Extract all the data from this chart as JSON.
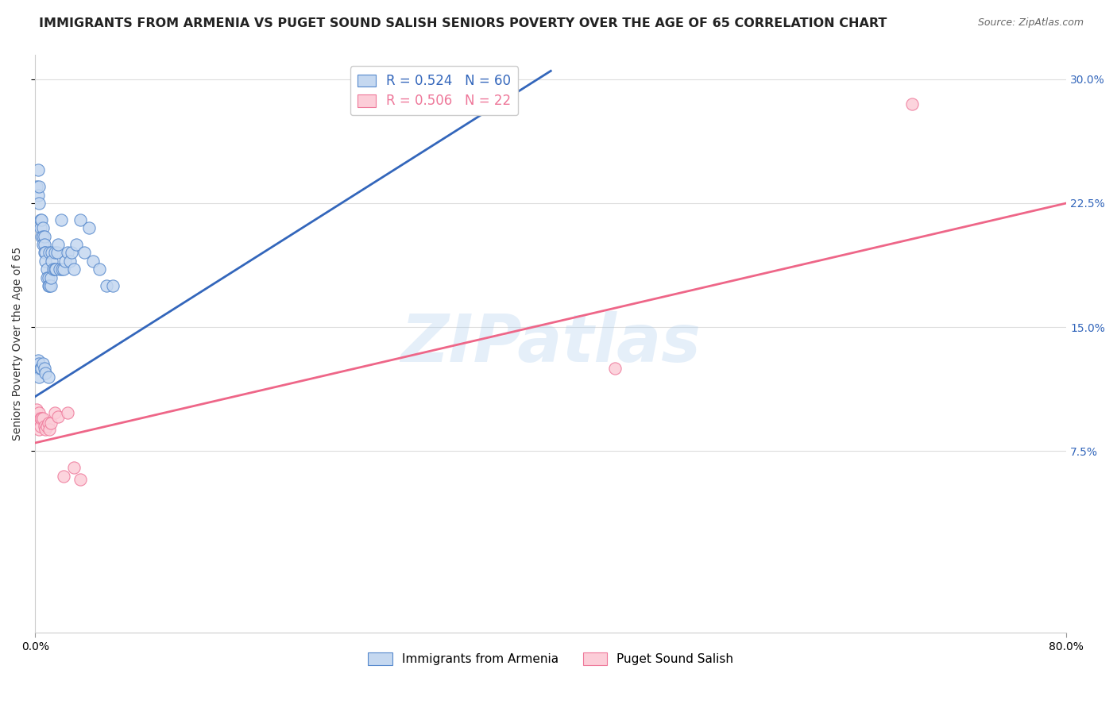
{
  "title": "IMMIGRANTS FROM ARMENIA VS PUGET SOUND SALISH SENIORS POVERTY OVER THE AGE OF 65 CORRELATION CHART",
  "source": "Source: ZipAtlas.com",
  "ylabel_label": "Seniors Poverty Over the Age of 65",
  "xmax": 0.8,
  "ymin": -0.035,
  "ymax": 0.315,
  "blue_R": 0.524,
  "blue_N": 60,
  "pink_R": 0.506,
  "pink_N": 22,
  "blue_fill_color": "#C5D8F0",
  "pink_fill_color": "#FCCDD8",
  "blue_edge_color": "#5588CC",
  "pink_edge_color": "#EE7799",
  "blue_line_color": "#3366BB",
  "pink_line_color": "#EE6688",
  "legend_label_blue": "Immigrants from Armenia",
  "legend_label_pink": "Puget Sound Salish",
  "watermark": "ZIPatlas",
  "blue_scatter_x": [
    0.001,
    0.002,
    0.002,
    0.003,
    0.003,
    0.004,
    0.004,
    0.005,
    0.005,
    0.006,
    0.006,
    0.006,
    0.007,
    0.007,
    0.007,
    0.008,
    0.008,
    0.009,
    0.009,
    0.01,
    0.01,
    0.011,
    0.011,
    0.012,
    0.012,
    0.013,
    0.013,
    0.014,
    0.015,
    0.015,
    0.016,
    0.017,
    0.018,
    0.019,
    0.02,
    0.021,
    0.022,
    0.023,
    0.025,
    0.027,
    0.028,
    0.03,
    0.032,
    0.035,
    0.038,
    0.042,
    0.045,
    0.05,
    0.055,
    0.06,
    0.001,
    0.002,
    0.003,
    0.003,
    0.004,
    0.005,
    0.006,
    0.007,
    0.008,
    0.01
  ],
  "blue_scatter_y": [
    0.235,
    0.245,
    0.23,
    0.235,
    0.225,
    0.215,
    0.21,
    0.215,
    0.205,
    0.21,
    0.205,
    0.2,
    0.205,
    0.2,
    0.195,
    0.195,
    0.19,
    0.185,
    0.18,
    0.18,
    0.175,
    0.175,
    0.195,
    0.175,
    0.18,
    0.195,
    0.19,
    0.185,
    0.195,
    0.185,
    0.185,
    0.195,
    0.2,
    0.185,
    0.215,
    0.185,
    0.185,
    0.19,
    0.195,
    0.19,
    0.195,
    0.185,
    0.2,
    0.215,
    0.195,
    0.21,
    0.19,
    0.185,
    0.175,
    0.175,
    0.125,
    0.13,
    0.128,
    0.12,
    0.125,
    0.125,
    0.128,
    0.125,
    0.122,
    0.12
  ],
  "pink_scatter_x": [
    0.001,
    0.002,
    0.003,
    0.003,
    0.004,
    0.004,
    0.005,
    0.006,
    0.007,
    0.008,
    0.009,
    0.01,
    0.011,
    0.012,
    0.015,
    0.018,
    0.022,
    0.025,
    0.03,
    0.035,
    0.45,
    0.68
  ],
  "pink_scatter_y": [
    0.1,
    0.095,
    0.098,
    0.088,
    0.095,
    0.09,
    0.095,
    0.095,
    0.09,
    0.088,
    0.09,
    0.092,
    0.088,
    0.092,
    0.098,
    0.096,
    0.06,
    0.098,
    0.065,
    0.058,
    0.125,
    0.285
  ],
  "blue_trendline_x": [
    0.0,
    0.4
  ],
  "blue_trendline_y": [
    0.108,
    0.305
  ],
  "pink_trendline_x": [
    0.0,
    0.8
  ],
  "pink_trendline_y": [
    0.08,
    0.225
  ],
  "yticks": [
    0.075,
    0.15,
    0.225,
    0.3
  ],
  "ytick_labels": [
    "7.5%",
    "15.0%",
    "22.5%",
    "30.0%"
  ],
  "xtick_positions": [
    0.0,
    0.8
  ],
  "xtick_labels": [
    "0.0%",
    "80.0%"
  ],
  "grid_color": "#DDDDDD",
  "background_color": "#FFFFFF",
  "title_fontsize": 11.5,
  "axis_label_fontsize": 10,
  "tick_fontsize": 10,
  "right_tick_color": "#3366BB"
}
